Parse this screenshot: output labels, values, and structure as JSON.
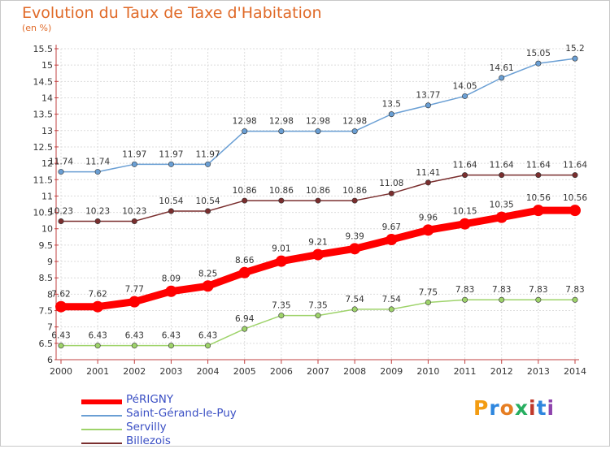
{
  "title": "Evolution du Taux de Taxe d'Habitation",
  "unit_label": "(en %)",
  "logo": {
    "letters": [
      "P",
      "r",
      "o",
      "x",
      "i",
      "t",
      "i"
    ],
    "colors": [
      "#f39c12",
      "#2e86de",
      "#e67e22",
      "#27ae60",
      "#c0392b",
      "#2e86de",
      "#8e44ad"
    ]
  },
  "chart_data": {
    "type": "line",
    "title": "Evolution du Taux de Taxe d'Habitation",
    "ylabel": "(en %)",
    "xlabel": "",
    "x": [
      2000,
      2001,
      2002,
      2003,
      2004,
      2005,
      2006,
      2007,
      2008,
      2009,
      2010,
      2011,
      2012,
      2013,
      2014
    ],
    "ylim": [
      6,
      15.5
    ],
    "yticks": [
      6,
      6.5,
      7,
      7.5,
      8,
      8.5,
      9,
      9.5,
      10,
      10.5,
      11,
      11.5,
      12,
      12.5,
      13,
      13.5,
      14,
      14.5,
      15,
      15.5
    ],
    "grid": true,
    "legend_position": "bottom-left",
    "series": [
      {
        "name": "PéRIGNY",
        "color": "#ff0000",
        "values": [
          7.62,
          7.62,
          7.77,
          8.09,
          8.25,
          8.66,
          9.01,
          9.21,
          9.39,
          9.67,
          9.96,
          10.15,
          10.35,
          10.56,
          10.56
        ]
      },
      {
        "name": "Saint-Gérand-le-Puy",
        "color": "#6a9fd4",
        "values": [
          11.74,
          11.74,
          11.97,
          11.97,
          11.97,
          12.98,
          12.98,
          12.98,
          12.98,
          13.5,
          13.77,
          14.05,
          14.61,
          15.05,
          15.2
        ]
      },
      {
        "name": "Servilly",
        "color": "#9ed36a",
        "values": [
          6.43,
          6.43,
          6.43,
          6.43,
          6.43,
          6.94,
          7.35,
          7.35,
          7.54,
          7.54,
          7.75,
          7.83,
          7.83,
          7.83,
          7.83
        ]
      },
      {
        "name": "Billezois",
        "color": "#7a2e2e",
        "values": [
          10.23,
          10.23,
          10.23,
          10.54,
          10.54,
          10.86,
          10.86,
          10.86,
          10.86,
          11.08,
          11.41,
          11.64,
          11.64,
          11.64,
          11.64
        ]
      }
    ]
  }
}
